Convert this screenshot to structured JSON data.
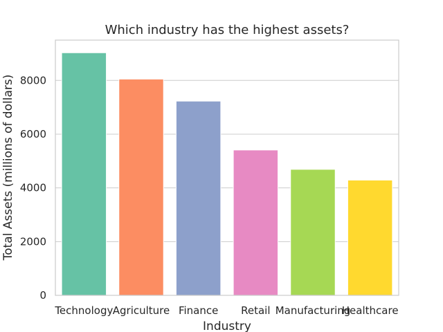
{
  "chart_data": {
    "type": "bar",
    "title": "Which industry has the highest assets?",
    "xlabel": "Industry",
    "ylabel": "Total Assets (millions of dollars)",
    "categories": [
      "Technology",
      "Agriculture",
      "Finance",
      "Retail",
      "Manufacturing",
      "Healthcare"
    ],
    "values": [
      9030,
      8050,
      7230,
      5410,
      4690,
      4290
    ],
    "colors": [
      "#66c2a5",
      "#fc8d62",
      "#8da0cb",
      "#e78ac3",
      "#a6d854",
      "#ffd92f"
    ],
    "ylim": [
      0,
      9500
    ],
    "yticks": [
      0,
      2000,
      4000,
      6000,
      8000
    ],
    "ytick_labels": [
      "0",
      "2000",
      "4000",
      "6000",
      "8000"
    ],
    "grid": true,
    "legend": "none"
  }
}
